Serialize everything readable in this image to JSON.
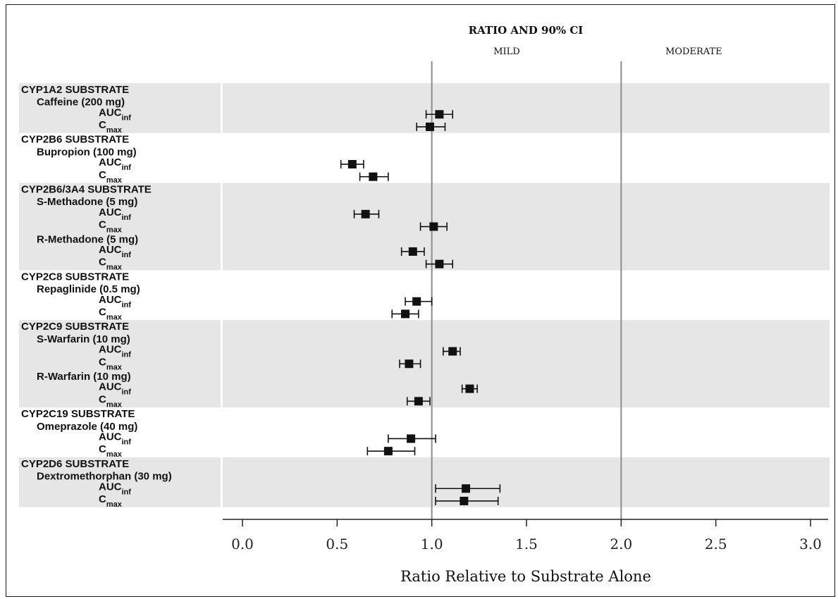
{
  "chart_data": {
    "type": "forest",
    "title": "RATIO AND 90% CI",
    "xlabel": "Ratio Relative to Substrate Alone",
    "xlim": [
      -0.1,
      3.1
    ],
    "xticks": [
      0.0,
      0.5,
      1.0,
      1.5,
      2.0,
      2.5,
      3.0
    ],
    "xtick_labels": [
      "0.0",
      "0.5",
      "1.0",
      "1.5",
      "2.0",
      "2.5",
      "3.0"
    ],
    "reference_lines": [
      {
        "x": 1.0,
        "label": "MILD"
      },
      {
        "x": 2.0,
        "label": "MODERATE"
      }
    ],
    "groups": [
      {
        "label": "CYP1A2 SUBSTRATE",
        "shaded": true,
        "drugs": [
          {
            "name": "Caffeine (200 mg)",
            "rows": [
              {
                "param": "AUC",
                "sub": "inf",
                "ratio": 1.04,
                "lo": 0.97,
                "hi": 1.11
              },
              {
                "param": "C",
                "sub": "max",
                "ratio": 0.99,
                "lo": 0.92,
                "hi": 1.07
              }
            ]
          }
        ]
      },
      {
        "label": "CYP2B6 SUBSTRATE",
        "shaded": false,
        "drugs": [
          {
            "name": "Bupropion (100 mg)",
            "rows": [
              {
                "param": "AUC",
                "sub": "inf",
                "ratio": 0.58,
                "lo": 0.52,
                "hi": 0.64
              },
              {
                "param": "C",
                "sub": "max",
                "ratio": 0.69,
                "lo": 0.62,
                "hi": 0.77
              }
            ]
          }
        ]
      },
      {
        "label": "CYP2B6/3A4 SUBSTRATE",
        "shaded": true,
        "drugs": [
          {
            "name": "S-Methadone (5 mg)",
            "rows": [
              {
                "param": "AUC",
                "sub": "inf",
                "ratio": 0.65,
                "lo": 0.59,
                "hi": 0.72
              },
              {
                "param": "C",
                "sub": "max",
                "ratio": 1.01,
                "lo": 0.94,
                "hi": 1.08
              }
            ]
          },
          {
            "name": "R-Methadone (5 mg)",
            "rows": [
              {
                "param": "AUC",
                "sub": "inf",
                "ratio": 0.9,
                "lo": 0.84,
                "hi": 0.96
              },
              {
                "param": "C",
                "sub": "max",
                "ratio": 1.04,
                "lo": 0.97,
                "hi": 1.11
              }
            ]
          }
        ]
      },
      {
        "label": "CYP2C8 SUBSTRATE",
        "shaded": false,
        "drugs": [
          {
            "name": "Repaglinide (0.5 mg)",
            "rows": [
              {
                "param": "AUC",
                "sub": "inf",
                "ratio": 0.92,
                "lo": 0.86,
                "hi": 1.0
              },
              {
                "param": "C",
                "sub": "max",
                "ratio": 0.86,
                "lo": 0.79,
                "hi": 0.93
              }
            ]
          }
        ]
      },
      {
        "label": "CYP2C9 SUBSTRATE",
        "shaded": true,
        "drugs": [
          {
            "name": "S-Warfarin (10 mg)",
            "rows": [
              {
                "param": "AUC",
                "sub": "inf",
                "ratio": 1.11,
                "lo": 1.06,
                "hi": 1.15
              },
              {
                "param": "C",
                "sub": "max",
                "ratio": 0.88,
                "lo": 0.83,
                "hi": 0.94
              }
            ]
          },
          {
            "name": "R-Warfarin (10 mg)",
            "rows": [
              {
                "param": "AUC",
                "sub": "inf",
                "ratio": 1.2,
                "lo": 1.16,
                "hi": 1.24
              },
              {
                "param": "C",
                "sub": "max",
                "ratio": 0.93,
                "lo": 0.87,
                "hi": 0.99
              }
            ]
          }
        ]
      },
      {
        "label": "CYP2C19 SUBSTRATE",
        "shaded": false,
        "drugs": [
          {
            "name": "Omeprazole (40 mg)",
            "rows": [
              {
                "param": "AUC",
                "sub": "inf",
                "ratio": 0.89,
                "lo": 0.77,
                "hi": 1.02
              },
              {
                "param": "C",
                "sub": "max",
                "ratio": 0.77,
                "lo": 0.66,
                "hi": 0.91
              }
            ]
          }
        ]
      },
      {
        "label": "CYP2D6 SUBSTRATE",
        "shaded": true,
        "drugs": [
          {
            "name": "Dextromethorphan (30 mg)",
            "rows": [
              {
                "param": "AUC",
                "sub": "inf",
                "ratio": 1.18,
                "lo": 1.02,
                "hi": 1.36
              },
              {
                "param": "C",
                "sub": "max",
                "ratio": 1.17,
                "lo": 1.02,
                "hi": 1.35
              }
            ]
          }
        ]
      }
    ],
    "colors": {
      "band": "#e6e6e6",
      "marker": "#111111",
      "refline": "#8c8c8c",
      "axis": "#222222"
    }
  }
}
